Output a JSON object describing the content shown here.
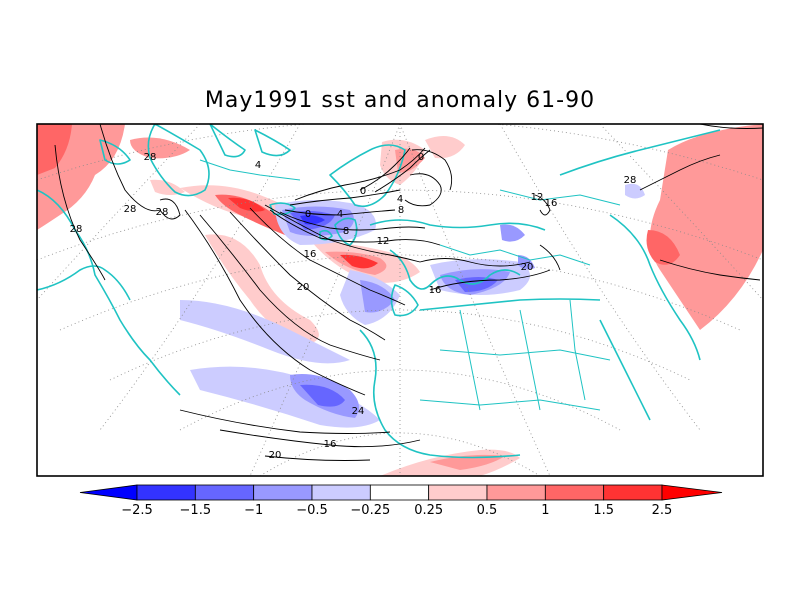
{
  "title": "May1991 sst and anomaly 61-90",
  "colors": {
    "coast": "#1fc3c3",
    "grid": "#8a8a8a",
    "contour": "#000000",
    "frame": "#000000"
  },
  "contour_labels": [
    "28",
    "28",
    "28",
    "28",
    "28",
    "24",
    "20",
    "20",
    "16",
    "16",
    "16",
    "12",
    "12",
    "8",
    "8",
    "4",
    "4",
    "0",
    "0",
    "0",
    "4",
    "16",
    "20"
  ],
  "colorbar": {
    "levels": [
      -2.5,
      -1.5,
      -1,
      -0.5,
      -0.25,
      0.25,
      0.5,
      1,
      1.5,
      2.5
    ],
    "tick_labels": [
      "-2.5",
      "-1.5",
      "-1",
      "-0.5",
      "-0.25",
      "0.25",
      "0.5",
      "1",
      "1.5",
      "2.5"
    ],
    "fills": [
      "#0000ff",
      "#3333ff",
      "#6666ff",
      "#9999ff",
      "#ccccff",
      "#ffffff",
      "#ffcccc",
      "#ff9999",
      "#ff6666",
      "#ff3333",
      "#ff0000"
    ]
  }
}
